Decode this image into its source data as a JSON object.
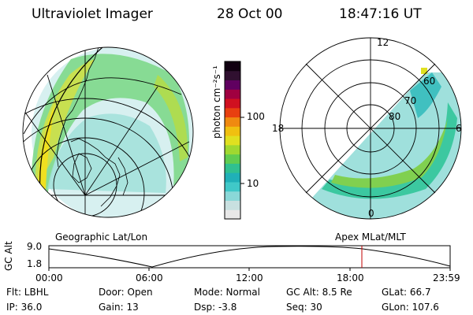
{
  "header": {
    "instrument": "Ultraviolet Imager",
    "date": "28 Oct 00",
    "time": "18:47:16 UT"
  },
  "colorbar": {
    "unit_label": "photon cm⁻²s⁻¹",
    "tick_labels": [
      "100",
      "10"
    ],
    "colors": [
      "#e8e8e8",
      "#c8e0e0",
      "#8ad8d8",
      "#40c8c8",
      "#20b0b8",
      "#30c090",
      "#60cc50",
      "#a0d830",
      "#e0e020",
      "#f0c010",
      "#f08a10",
      "#e84010",
      "#d01020",
      "#a00040",
      "#600060",
      "#301030",
      "#100010"
    ]
  },
  "left_panel": {
    "caption": "Geographic Lat/Lon"
  },
  "right_panel": {
    "caption": "Apex MLat/MLT",
    "mlt_labels": [
      "12",
      "18",
      "6",
      "0"
    ],
    "mlat_labels": [
      "60",
      "70",
      "80"
    ]
  },
  "altitude_plot": {
    "ylabel": "GC Alt",
    "y_ticks": [
      "9.0",
      "1.8"
    ],
    "x_ticks": [
      "00:00",
      "06:00",
      "12:00",
      "18:00",
      "23:59"
    ],
    "current_time_marker": "18:47",
    "marker_color": "#c00000"
  },
  "status": {
    "flt": "Flt: LBHL",
    "ip": "IP: 36.0",
    "door": "Door: Open",
    "gain": "Gain: 13",
    "mode": "Mode: Normal",
    "dsp": "Dsp:   -3.8",
    "gcalt": "GC Alt: 8.5 Re",
    "seq": "Seq: 30",
    "glat": "GLat:  66.7",
    "glon": "GLon: 107.6"
  }
}
